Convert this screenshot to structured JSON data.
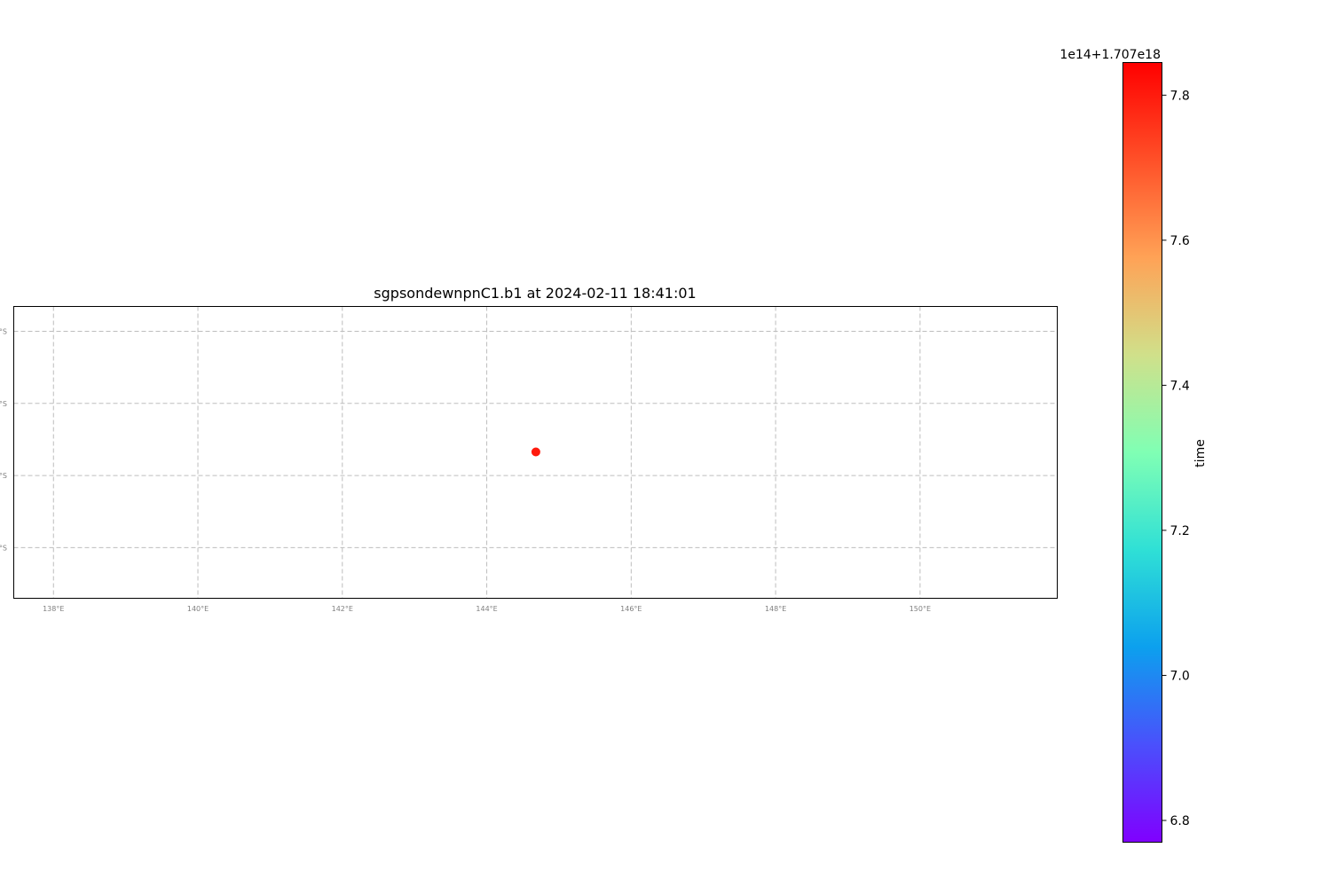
{
  "chart_data": {
    "type": "scatter",
    "title": "sgpsondewnpnC1.b1 at 2024-02-11 18:41:01",
    "x_ticks": [
      138,
      140,
      142,
      144,
      146,
      148,
      150
    ],
    "x_tick_labels": [
      "138°E",
      "140°E",
      "142°E",
      "144°E",
      "146°E",
      "148°E",
      "150°E"
    ],
    "y_tick_labels": [
      "°S",
      "°S",
      "°S",
      "°S"
    ],
    "xlim": [
      137.45,
      151.9
    ],
    "points": [
      {
        "lon": 144.68,
        "lat": -37.67,
        "color": "#ff1a0d"
      }
    ],
    "grid": true,
    "grid_color": "#bdbdbd",
    "colorbar": {
      "label": "time",
      "offset_text": "1e14+1.707e18",
      "range": [
        6.77,
        7.845
      ],
      "ticks": [
        6.8,
        7.0,
        7.2,
        7.4,
        7.6,
        7.8
      ],
      "tick_labels": [
        "6.8",
        "7.0",
        "7.2",
        "7.4",
        "7.6",
        "7.8"
      ],
      "colormap": "rainbow"
    }
  }
}
